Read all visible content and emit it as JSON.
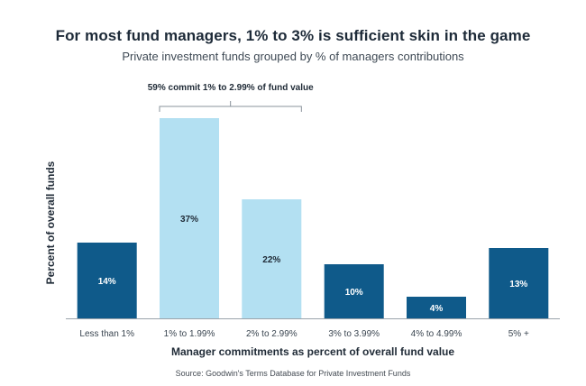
{
  "chart_data": {
    "type": "bar",
    "title": "For most fund managers, 1% to 3% is sufficient skin in the game",
    "subtitle": "Private investment funds grouped by % of managers contributions",
    "xlabel": "Manager commitments as percent of overall fund value",
    "ylabel": "Percent of overall funds",
    "ylim": [
      0,
      37
    ],
    "grid": false,
    "categories": [
      "Less than 1%",
      "1% to 1.99%",
      "2% to 2.99%",
      "3% to 3.99%",
      "4% to 4.99%",
      "5% +"
    ],
    "values": [
      14,
      37,
      22,
      10,
      4,
      13
    ],
    "data_labels": [
      "14%",
      "37%",
      "22%",
      "10%",
      "4%",
      "13%"
    ],
    "bar_colors": [
      "#0f5a8a",
      "#b3e0f2",
      "#b3e0f2",
      "#0f5a8a",
      "#0f5a8a",
      "#0f5a8a"
    ],
    "label_colors": [
      "#ffffff",
      "#1f2a36",
      "#1f2a36",
      "#ffffff",
      "#ffffff",
      "#ffffff"
    ],
    "annotation": {
      "text": "59% commit 1% to 2.99% of fund value",
      "spans_categories": [
        "1% to 1.99%",
        "2% to 2.99%"
      ]
    },
    "source": "Source: Goodwin's Terms Database for Private Investment Funds"
  }
}
